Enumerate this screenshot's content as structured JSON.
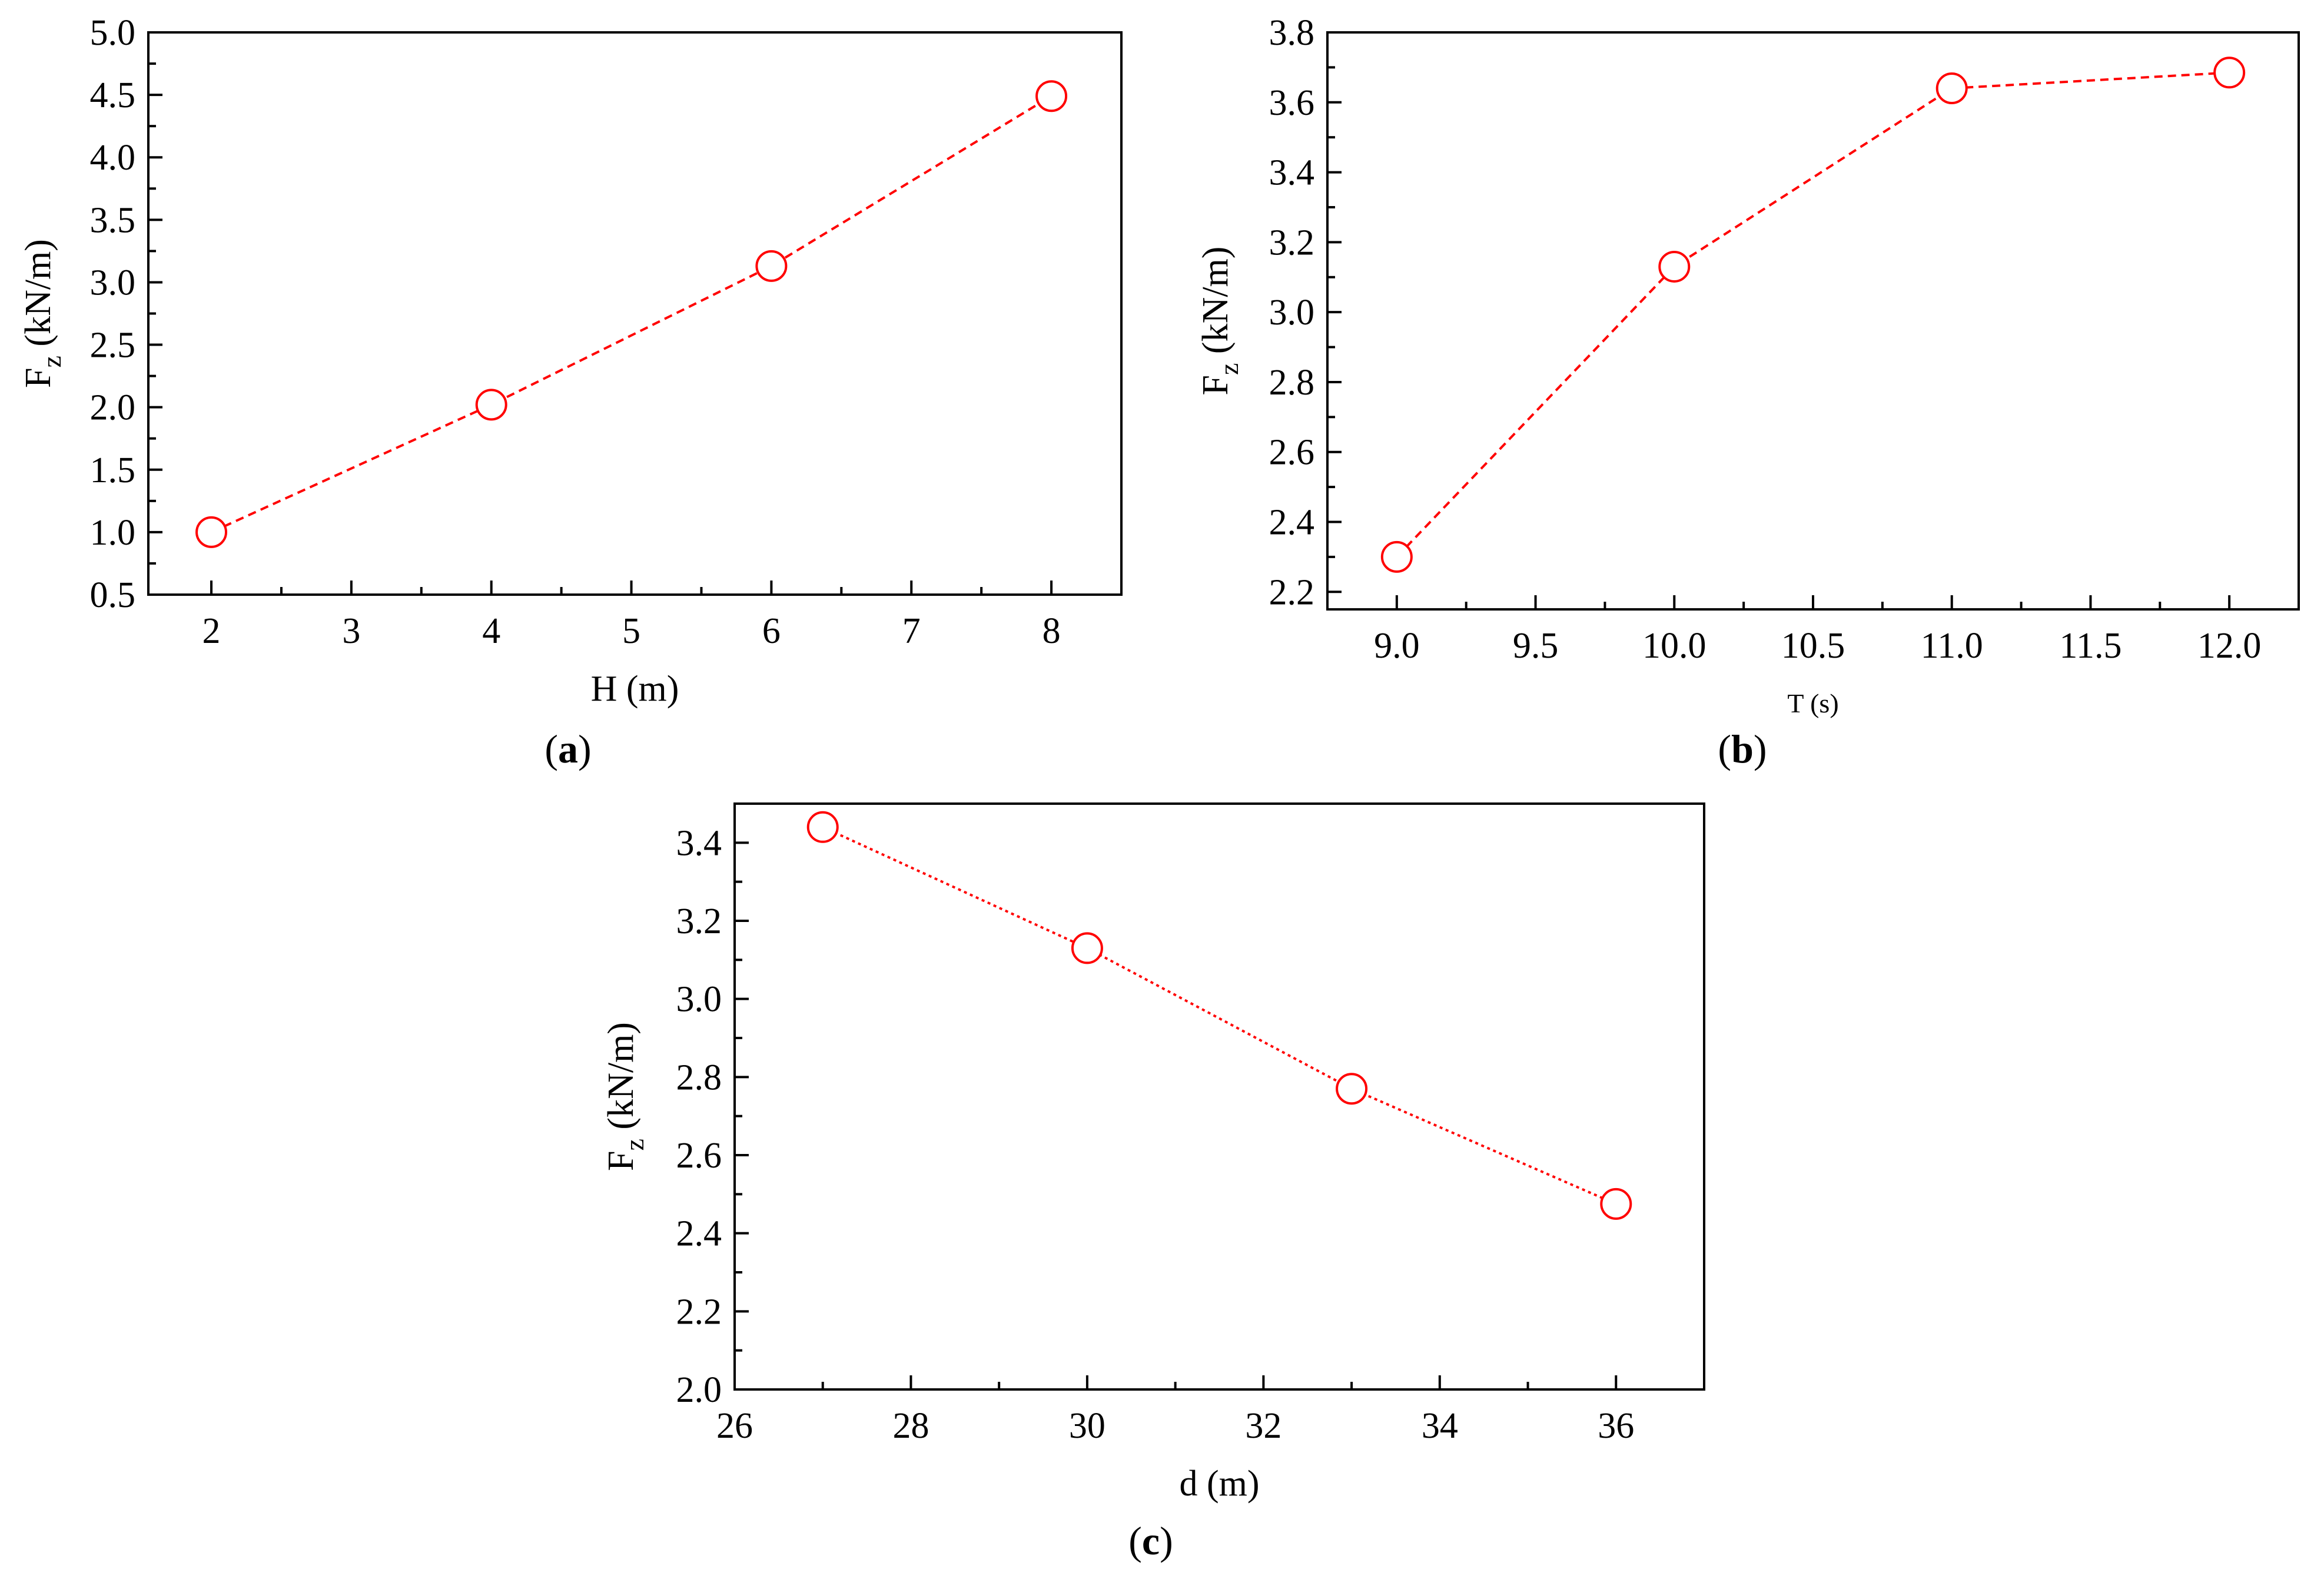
{
  "chart_data": [
    {
      "type": "line",
      "panel_label": "a",
      "xlabel": "H (m)",
      "ylabel_main": "F",
      "ylabel_sub": "z",
      "ylabel_unit": " (kN/m)",
      "xlim": [
        1.55,
        8.5
      ],
      "ylim": [
        0.5,
        5.0
      ],
      "xticks": [
        2,
        3,
        4,
        5,
        6,
        7,
        8
      ],
      "xtick_labels": [
        "2",
        "3",
        "4",
        "5",
        "6",
        "7",
        "8"
      ],
      "xtick_minor": [
        1.5,
        2.5,
        3.5,
        4.5,
        5.5,
        6.5,
        7.5,
        8.5
      ],
      "yticks": [
        0.5,
        1.0,
        1.5,
        2.0,
        2.5,
        3.0,
        3.5,
        4.0,
        4.5,
        5.0
      ],
      "ytick_labels": [
        "0.5",
        "1.0",
        "1.5",
        "2.0",
        "2.5",
        "3.0",
        "3.5",
        "4.0",
        "4.5",
        "5.0"
      ],
      "ytick_minor": [
        0.75,
        1.25,
        1.75,
        2.25,
        2.75,
        3.25,
        3.75,
        4.25,
        4.75
      ],
      "series": [
        {
          "x": [
            2,
            4,
            6,
            8
          ],
          "values": [
            1.0,
            2.02,
            3.13,
            4.49
          ],
          "color": "#ff0000",
          "line_style": "dashed",
          "marker": "open-circle"
        }
      ],
      "grid": false,
      "legend": "none"
    },
    {
      "type": "line",
      "panel_label": "b",
      "xlabel": "T (s)",
      "ylabel_main": "F",
      "ylabel_sub": "z",
      "ylabel_unit": " (kN/m)",
      "xlim": [
        8.75,
        12.25
      ],
      "ylim": [
        2.15,
        3.8
      ],
      "xticks": [
        9.0,
        9.5,
        10.0,
        10.5,
        11.0,
        11.5,
        12.0
      ],
      "xtick_labels": [
        "9.0",
        "9.5",
        "10.0",
        "10.5",
        "11.0",
        "11.5",
        "12.0"
      ],
      "xtick_minor": [
        9.25,
        9.75,
        10.25,
        10.75,
        11.25,
        11.75
      ],
      "yticks": [
        2.2,
        2.4,
        2.6,
        2.8,
        3.0,
        3.2,
        3.4,
        3.6,
        3.8
      ],
      "ytick_labels": [
        "2.2",
        "2.4",
        "2.6",
        "2.8",
        "3.0",
        "3.2",
        "3.4",
        "3.6",
        "3.8"
      ],
      "ytick_minor": [
        2.3,
        2.5,
        2.7,
        2.9,
        3.1,
        3.3,
        3.5,
        3.7
      ],
      "series": [
        {
          "x": [
            9,
            10,
            11,
            12
          ],
          "values": [
            2.3,
            3.13,
            3.64,
            3.685
          ],
          "color": "#ff0000",
          "line_style": "dashed",
          "marker": "open-circle"
        }
      ],
      "grid": false,
      "legend": "none"
    },
    {
      "type": "line",
      "panel_label": "c",
      "xlabel": "d (m)",
      "ylabel_main": "F",
      "ylabel_sub": "z",
      "ylabel_unit": " (kN/m)",
      "xlim": [
        26,
        37
      ],
      "ylim": [
        2.0,
        3.5
      ],
      "xticks": [
        26,
        28,
        30,
        32,
        34,
        36
      ],
      "xtick_labels": [
        "26",
        "28",
        "30",
        "32",
        "34",
        "36"
      ],
      "xtick_minor": [
        27,
        29,
        31,
        33,
        35,
        37
      ],
      "yticks": [
        2.0,
        2.2,
        2.4,
        2.6,
        2.8,
        3.0,
        3.2,
        3.4
      ],
      "ytick_labels": [
        "2.0",
        "2.2",
        "2.4",
        "2.6",
        "2.8",
        "3.0",
        "3.2",
        "3.4"
      ],
      "ytick_minor": [
        2.1,
        2.3,
        2.5,
        2.7,
        2.9,
        3.1,
        3.3
      ],
      "series": [
        {
          "x": [
            27,
            30,
            33,
            36
          ],
          "values": [
            3.44,
            3.13,
            2.77,
            2.475
          ],
          "color": "#ff0000",
          "line_style": "dotted",
          "marker": "open-circle"
        }
      ],
      "grid": false,
      "legend": "none"
    }
  ]
}
